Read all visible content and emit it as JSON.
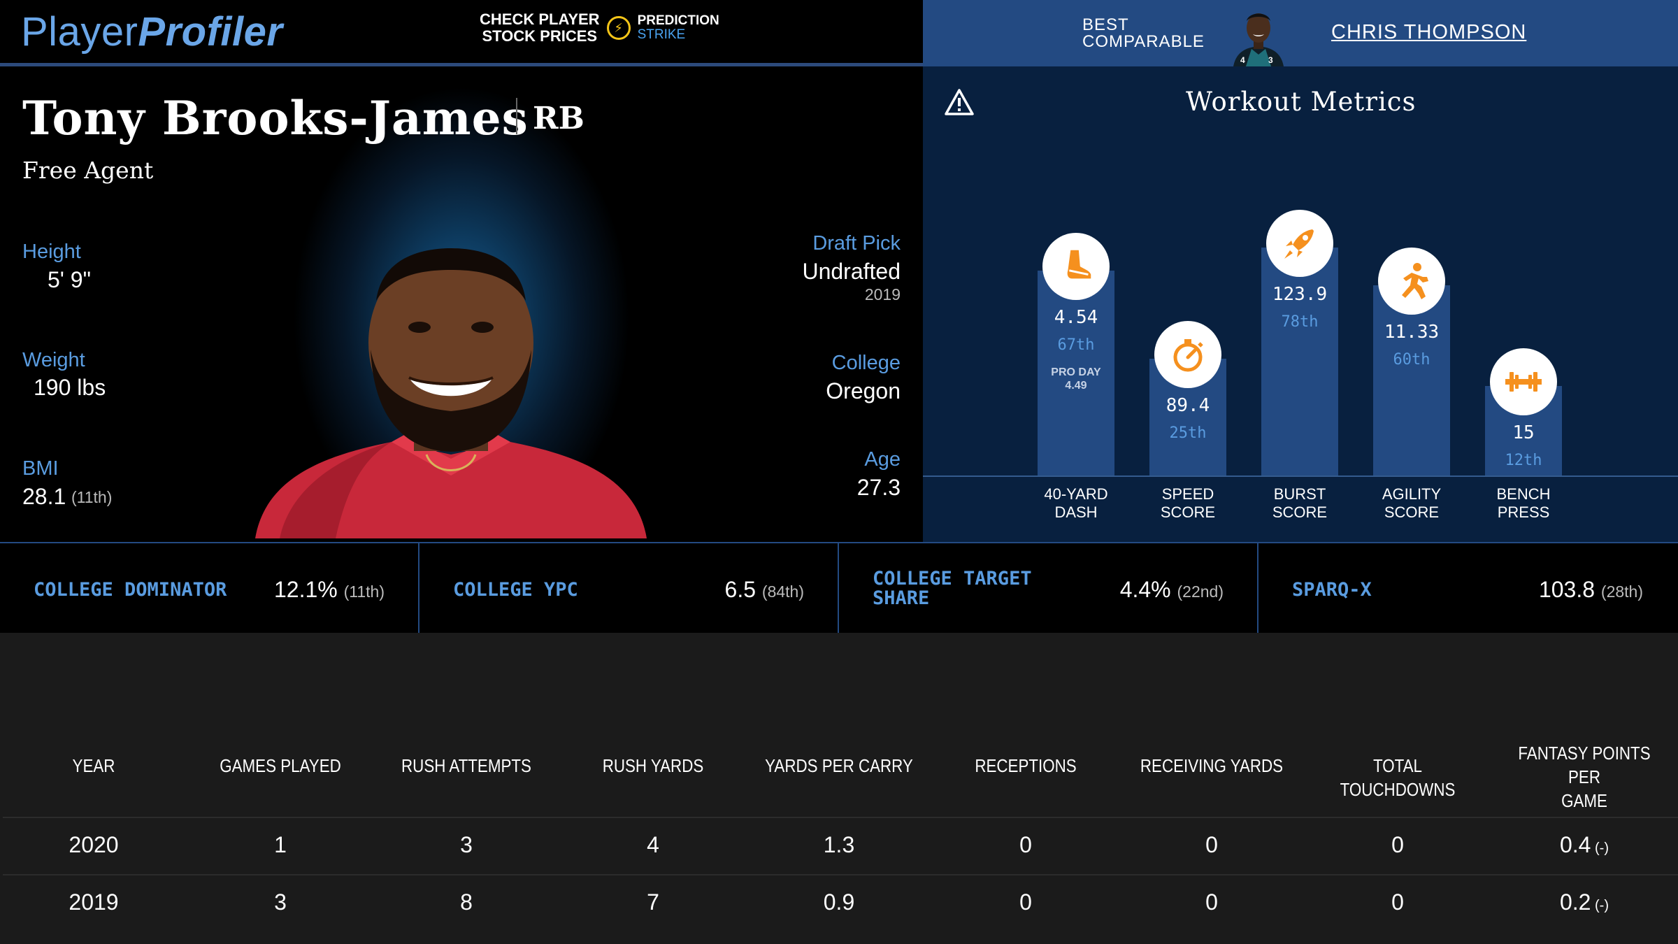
{
  "brand": {
    "part1": "Player",
    "part2": "Profiler"
  },
  "promo": {
    "line1": "CHECK PLAYER",
    "line2": "STOCK PRICES",
    "partner_a": "PREDICTION",
    "partner_b": "STRIKE"
  },
  "comparable": {
    "label_line1": "BEST",
    "label_line2": "COMPARABLE",
    "name": "CHRIS THOMPSON"
  },
  "player": {
    "name": "Tony Brooks-James",
    "position": "RB",
    "team": "Free Agent",
    "height_label": "Height",
    "height": "5' 9\"",
    "weight_label": "Weight",
    "weight": "190 lbs",
    "bmi_label": "BMI",
    "bmi": "28.1",
    "bmi_rank": "(11th)",
    "draft_label": "Draft Pick",
    "draft": "Undrafted",
    "draft_year": "2019",
    "college_label": "College",
    "college": "Oregon",
    "age_label": "Age",
    "age": "27.3"
  },
  "workout": {
    "title": "Workout Metrics",
    "metrics": [
      {
        "label1": "40-YARD",
        "label2": "DASH",
        "value": "4.54",
        "pct": "67th",
        "pct_num": 67,
        "extra1": "PRO DAY",
        "extra2": "4.49",
        "icon": "shoe-icon"
      },
      {
        "label1": "SPEED",
        "label2": "SCORE",
        "value": "89.4",
        "pct": "25th",
        "pct_num": 25,
        "icon": "stopwatch-icon"
      },
      {
        "label1": "BURST",
        "label2": "SCORE",
        "value": "123.9",
        "pct": "78th",
        "pct_num": 78,
        "icon": "rocket-icon"
      },
      {
        "label1": "AGILITY",
        "label2": "SCORE",
        "value": "11.33",
        "pct": "60th",
        "pct_num": 60,
        "icon": "runner-icon"
      },
      {
        "label1": "BENCH",
        "label2": "PRESS",
        "value": "15",
        "pct": "12th",
        "pct_num": 12,
        "icon": "barbell-icon"
      }
    ]
  },
  "college_metrics": [
    {
      "label": "COLLEGE DOMINATOR",
      "value": "12.1%",
      "rank": "(11th)"
    },
    {
      "label": "COLLEGE YPC",
      "value": "6.5",
      "rank": "(84th)"
    },
    {
      "label_line1": "COLLEGE TARGET",
      "label_line2": "SHARE",
      "value": "4.4%",
      "rank": "(22nd)"
    },
    {
      "label": "SPARQ-X",
      "value": "103.8",
      "rank": "(28th)"
    }
  ],
  "stats_table": {
    "headers": [
      "YEAR",
      "GAMES PLAYED",
      "RUSH ATTEMPTS",
      "RUSH YARDS",
      "YARDS PER CARRY",
      "RECEPTIONS",
      "RECEIVING YARDS",
      "TOTAL TOUCHDOWNS",
      "FANTASY POINTS PER",
      "GAME"
    ],
    "rows": [
      {
        "year": "2020",
        "games": "1",
        "rush_att": "3",
        "rush_yds": "4",
        "ypc": "1.3",
        "rec": "0",
        "rec_yds": "0",
        "td": "0",
        "fppg": "0.4",
        "fppg_rank": "(-)"
      },
      {
        "year": "2019",
        "games": "3",
        "rush_att": "8",
        "rush_yds": "7",
        "ypc": "0.9",
        "rec": "0",
        "rec_yds": "0",
        "td": "0",
        "fppg": "0.2",
        "fppg_rank": "(-)"
      }
    ]
  },
  "colors": {
    "accent_blue": "#5a9ce0",
    "bar_blue": "#234a82",
    "icon_orange": "#f5901e"
  }
}
